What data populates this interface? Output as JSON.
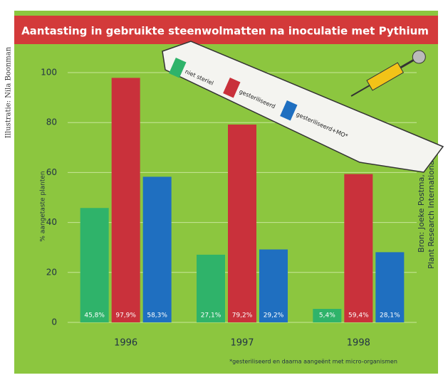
{
  "chart_data": {
    "type": "bar",
    "title": "Aantasting in gebruikte steenwolmatten na inoculatie met Pythium",
    "ylabel": "% aangetaste planten",
    "credit": "Illustratie: Nila Boonman",
    "source": [
      "Bron: Joeke Postma,",
      "Plant Research International"
    ],
    "footnote": "*gesteriliseerd en daarna aangeënt met micro-organismen",
    "categories": [
      "1996",
      "1997",
      "1998"
    ],
    "series": [
      {
        "name": "niet steriel",
        "color": "#2fb36a",
        "values": [
          45.8,
          27.1,
          5.4
        ],
        "value_labels": [
          "45,8%",
          "27,1%",
          "5,4%"
        ]
      },
      {
        "name": "gesteriliseerd",
        "color": "#c9313b",
        "values": [
          97.9,
          79.2,
          59.4
        ],
        "value_labels": [
          "97,9%",
          "79,2%",
          "59,4%"
        ]
      },
      {
        "name": "gesteriliseerd+MO*",
        "color": "#1f6fc0",
        "values": [
          58.3,
          29.2,
          28.1
        ],
        "value_labels": [
          "58,3%",
          "29,2%",
          "28,1%"
        ]
      }
    ],
    "ylim": [
      -2,
      106
    ],
    "yticks": [
      0,
      20,
      40,
      60,
      80,
      100
    ],
    "grid": true
  }
}
